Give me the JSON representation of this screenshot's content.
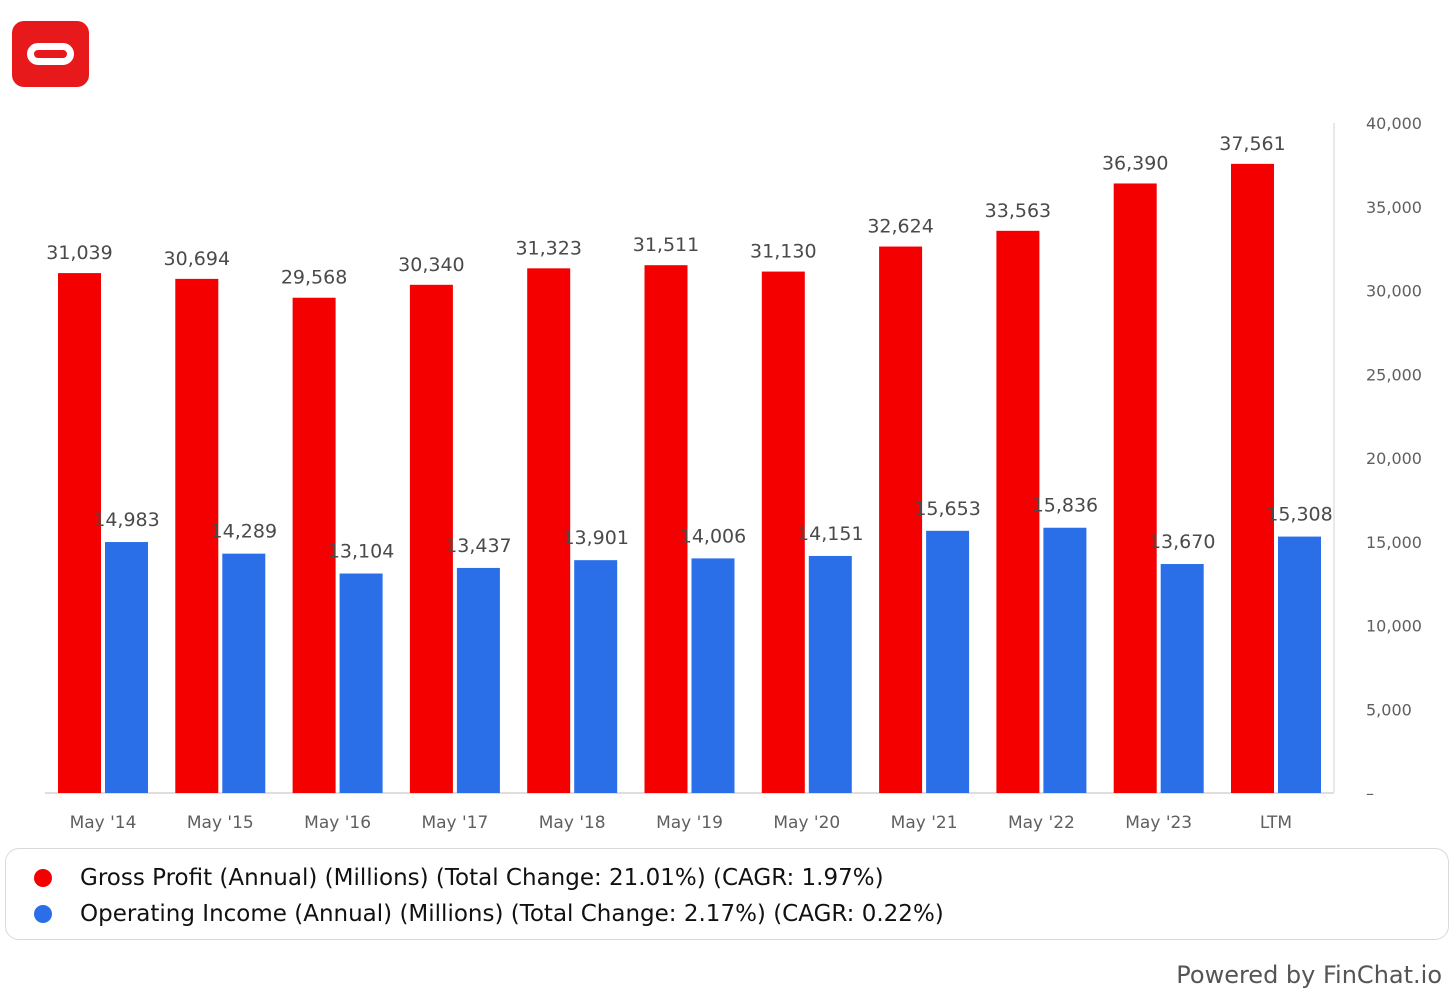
{
  "chart_data": {
    "type": "bar",
    "categories": [
      "May '14",
      "May '15",
      "May '16",
      "May '17",
      "May '18",
      "May '19",
      "May '20",
      "May '21",
      "May '22",
      "May '23",
      "LTM"
    ],
    "series": [
      {
        "name": "Gross Profit (Annual) (Millions) (Total Change: 21.01%) (CAGR: 1.97%)",
        "color": "#f50000",
        "values": [
          31039,
          30694,
          29568,
          30340,
          31323,
          31511,
          31130,
          32624,
          33563,
          36390,
          37561
        ],
        "labels": [
          "31,039",
          "30,694",
          "29,568",
          "30,340",
          "31,323",
          "31,511",
          "31,130",
          "32,624",
          "33,563",
          "36,390",
          "37,561"
        ]
      },
      {
        "name": "Operating Income (Annual) (Millions) (Total Change: 2.17%) (CAGR: 0.22%)",
        "color": "#2a6fe8",
        "values": [
          14983,
          14289,
          13104,
          13437,
          13901,
          14006,
          14151,
          15653,
          15836,
          13670,
          15308
        ],
        "labels": [
          "14,983",
          "14,289",
          "13,104",
          "13,437",
          "13,901",
          "14,006",
          "14,151",
          "15,653",
          "15,836",
          "13,670",
          "15,308"
        ]
      }
    ],
    "y_axis": {
      "position": "right",
      "ylim": [
        0,
        40000
      ],
      "ticks": [
        0,
        5000,
        10000,
        15000,
        20000,
        25000,
        30000,
        35000,
        40000
      ],
      "tick_labels": [
        "–",
        "5,000",
        "10,000",
        "15,000",
        "20,000",
        "25,000",
        "30,000",
        "35,000",
        "40,000"
      ]
    },
    "grid": false,
    "legend_position": "bottom"
  },
  "legend": {
    "gross_profit": "Gross Profit (Annual) (Millions) (Total Change: 21.01%) (CAGR: 1.97%)",
    "operating_income": "Operating Income (Annual) (Millions) (Total Change: 2.17%) (CAGR: 0.22%)"
  },
  "footer": {
    "powered_by": "Powered by FinChat.io"
  },
  "logo": {
    "icon": "oracle-logo-icon",
    "color": "#e8191b"
  }
}
